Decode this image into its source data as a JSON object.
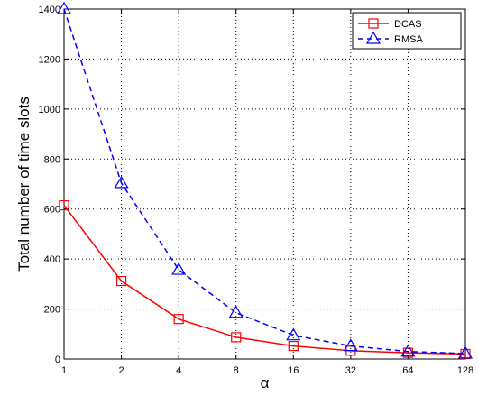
{
  "chart_data": {
    "type": "line",
    "xscale": "log2",
    "categories": [
      "1",
      "2",
      "4",
      "8",
      "16",
      "32",
      "64",
      "128"
    ],
    "x": [
      1,
      2,
      4,
      8,
      16,
      32,
      64,
      128
    ],
    "xlabel": "α",
    "ylabel": "Total number of time slots",
    "ylim": [
      0,
      1400
    ],
    "yticks": [
      0,
      200,
      400,
      600,
      800,
      1000,
      1200,
      1400
    ],
    "grid": true,
    "legend_position": "top-right",
    "series": [
      {
        "name": "DCAS",
        "color": "#ff0000",
        "line_style": "solid",
        "marker": "square",
        "values": [
          615,
          312,
          160,
          87,
          52,
          33,
          25,
          20
        ]
      },
      {
        "name": "RMSA",
        "color": "#0000ff",
        "line_style": "dashed",
        "marker": "triangle",
        "values": [
          1400,
          704,
          357,
          185,
          95,
          52,
          30,
          22
        ]
      }
    ]
  }
}
